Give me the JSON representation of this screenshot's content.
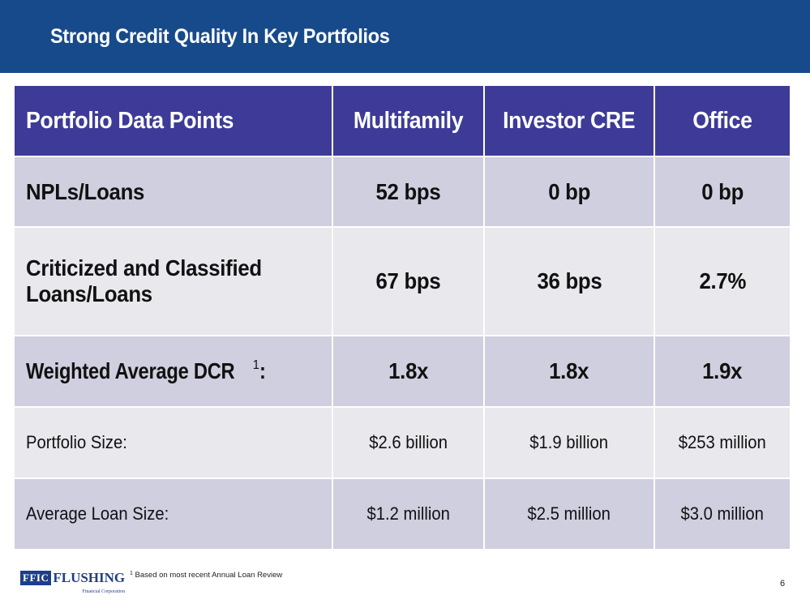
{
  "title": "Strong Credit Quality In Key Portfolios",
  "table": {
    "headers": [
      "Portfolio Data Points",
      "Multifamily",
      "Investor CRE",
      "Office"
    ],
    "rows": [
      {
        "label": "NPLs/Loans",
        "values": [
          "52 bps",
          "0 bp",
          "0 bp"
        ]
      },
      {
        "label_line1": "Criticized and Classified",
        "label_line2": "Loans/Loans",
        "values": [
          "67 bps",
          "36 bps",
          "2.7%"
        ]
      },
      {
        "label": "Weighted Average DCR",
        "sup": "1",
        "colon": ":",
        "values": [
          "1.8x",
          "1.8x",
          "1.9x"
        ]
      },
      {
        "label": "Portfolio Size:",
        "values": [
          "$2.6 billion",
          "$1.9 billion",
          "$253 million"
        ]
      },
      {
        "label": "Average Loan Size:",
        "values": [
          "$1.2 million",
          "$2.5 million",
          "$3.0 million"
        ]
      }
    ]
  },
  "footer": {
    "logo_box": "FFIC",
    "logo_text": "FLUSHING",
    "logo_sub": "Financial Corporation",
    "footnote_mark": "1",
    "footnote": "Based on most recent Annual Loan Review",
    "page_number": "6"
  },
  "colors": {
    "title_bar": "#174a8b",
    "header_row": "#3d3b97",
    "row_dark": "#cfcfdf",
    "row_light": "#e8e8ed"
  }
}
